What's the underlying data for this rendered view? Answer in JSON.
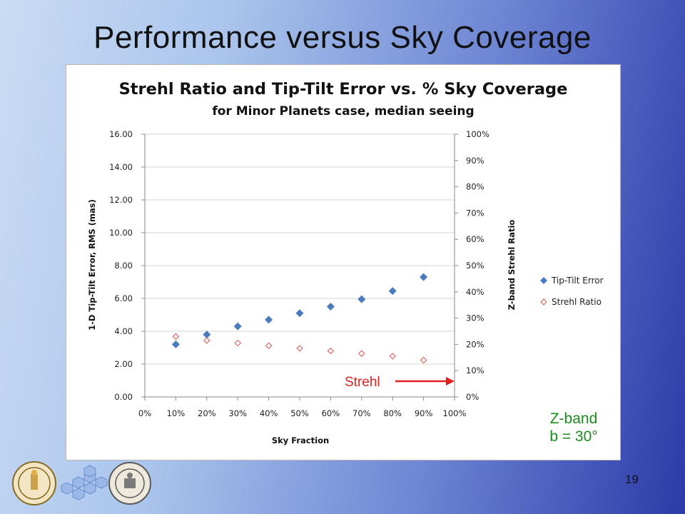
{
  "slide": {
    "title": "Performance versus Sky Coverage",
    "page_number": "19",
    "annotation_strehl": "Strehl",
    "zband_line1": "Z-band",
    "zband_line2": "b = 30°"
  },
  "colors": {
    "tip_tilt": "#4a7bbf",
    "strehl": "#d9534f",
    "annotation": "#e02020",
    "zband": "#1a8c1a"
  },
  "chart_data": {
    "type": "scatter",
    "title": "Strehl Ratio and Tip-Tilt Error vs. % Sky Coverage",
    "subtitle": "for Minor Planets case, median seeing",
    "xlabel": "Sky Fraction",
    "ylabel": "1-D Tip-Tilt Error, RMS (mas)",
    "y2label": "Z-band Strehl Ratio",
    "x_ticks": [
      "0%",
      "10%",
      "20%",
      "30%",
      "40%",
      "50%",
      "60%",
      "70%",
      "80%",
      "90%",
      "100%"
    ],
    "y_ticks": [
      "0.00",
      "2.00",
      "4.00",
      "6.00",
      "8.00",
      "10.00",
      "12.00",
      "14.00",
      "16.00"
    ],
    "y2_ticks": [
      "0%",
      "10%",
      "20%",
      "30%",
      "40%",
      "50%",
      "60%",
      "70%",
      "80%",
      "90%",
      "100%"
    ],
    "xlim": [
      0,
      1
    ],
    "ylim": [
      0,
      16
    ],
    "y2lim": [
      0,
      1
    ],
    "grid": "horizontal",
    "legend_position": "right",
    "series": [
      {
        "name": "Tip-Tilt Error",
        "axis": "left",
        "marker": "filled-diamond",
        "x": [
          0.1,
          0.2,
          0.3,
          0.4,
          0.5,
          0.6,
          0.7,
          0.8,
          0.9
        ],
        "y": [
          3.2,
          3.8,
          4.3,
          4.7,
          5.1,
          5.5,
          5.95,
          6.45,
          7.3
        ]
      },
      {
        "name": "Strehl Ratio",
        "axis": "right",
        "marker": "open-diamond",
        "x": [
          0.1,
          0.2,
          0.3,
          0.4,
          0.5,
          0.6,
          0.7,
          0.8,
          0.9
        ],
        "y": [
          0.23,
          0.215,
          0.205,
          0.195,
          0.185,
          0.175,
          0.165,
          0.155,
          0.14
        ]
      }
    ]
  }
}
